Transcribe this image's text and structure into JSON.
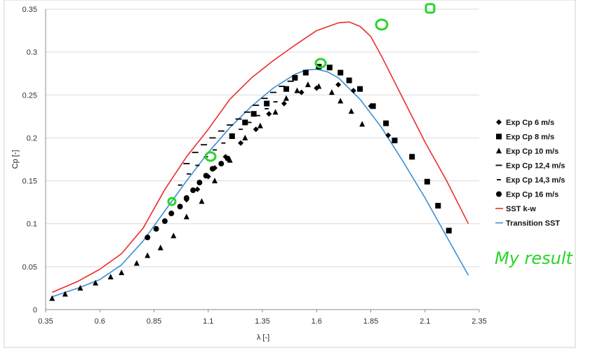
{
  "chart_data": {
    "type": "scatter",
    "xlabel": "λ [-]",
    "ylabel": "Cp [-]",
    "xlim": [
      0.35,
      2.35
    ],
    "ylim": [
      0,
      0.35
    ],
    "xticks": [
      "0.35",
      "0.6",
      "0.85",
      "1.1",
      "1.35",
      "1.6",
      "1.85",
      "2.1",
      "2.35"
    ],
    "yticks": [
      "0",
      "0.05",
      "0.1",
      "0.15",
      "0.2",
      "0.25",
      "0.3",
      "0.35"
    ],
    "grid": "horizontal",
    "legend_position": "right",
    "series": [
      {
        "name": "Exp Cp 6 m/s",
        "marker": "diamond",
        "color": "#000000",
        "x": [
          1.0,
          1.05,
          1.1,
          1.13,
          1.18,
          1.25,
          1.32,
          1.38,
          1.45,
          1.53,
          1.6,
          1.7,
          1.77,
          1.85,
          1.93
        ],
        "y": [
          0.128,
          0.14,
          0.155,
          0.165,
          0.178,
          0.194,
          0.21,
          0.228,
          0.24,
          0.253,
          0.258,
          0.262,
          0.255,
          0.237,
          0.203
        ]
      },
      {
        "name": "Exp Cp 8 m/s",
        "marker": "square",
        "color": "#000000",
        "x": [
          1.21,
          1.27,
          1.31,
          1.37,
          1.46,
          1.5,
          1.55,
          1.61,
          1.66,
          1.71,
          1.75,
          1.8,
          1.86,
          1.92,
          1.96,
          2.04,
          2.11,
          2.16,
          2.21
        ],
        "y": [
          0.202,
          0.218,
          0.228,
          0.24,
          0.257,
          0.27,
          0.276,
          0.283,
          0.282,
          0.276,
          0.267,
          0.257,
          0.237,
          0.217,
          0.197,
          0.178,
          0.149,
          0.121,
          0.092
        ]
      },
      {
        "name": "Exp Cp 10 m/s",
        "marker": "triangle",
        "color": "#000000",
        "x": [
          0.38,
          0.44,
          0.51,
          0.58,
          0.65,
          0.7,
          0.77,
          0.82,
          0.88,
          0.94,
          1.0,
          1.07,
          1.13,
          1.2,
          1.27,
          1.34,
          1.41,
          1.46,
          1.51,
          1.56,
          1.61,
          1.67,
          1.71,
          1.76,
          1.81
        ],
        "y": [
          0.013,
          0.018,
          0.025,
          0.031,
          0.038,
          0.043,
          0.054,
          0.063,
          0.072,
          0.086,
          0.108,
          0.126,
          0.15,
          0.174,
          0.2,
          0.214,
          0.23,
          0.246,
          0.255,
          0.262,
          0.26,
          0.253,
          0.243,
          0.231,
          0.216
        ]
      },
      {
        "name": "Exp Cp 12,4 m/s",
        "marker": "dash",
        "color": "#000000",
        "x": [
          1.0,
          1.04,
          1.08,
          1.12,
          1.16,
          1.2,
          1.24,
          1.28,
          1.32,
          1.36,
          1.4,
          1.44,
          1.48
        ],
        "y": [
          0.17,
          0.183,
          0.192,
          0.2,
          0.208,
          0.215,
          0.222,
          0.23,
          0.238,
          0.246,
          0.253,
          0.26,
          0.266
        ]
      },
      {
        "name": "Exp Cp 14,3 m/s",
        "marker": "short-dash",
        "color": "#000000",
        "x": [
          0.97,
          1.01,
          1.05,
          1.09,
          1.13,
          1.17,
          1.21,
          1.25,
          1.29,
          1.33,
          1.37,
          1.41
        ],
        "y": [
          0.145,
          0.158,
          0.168,
          0.178,
          0.186,
          0.194,
          0.202,
          0.21,
          0.218,
          0.226,
          0.234,
          0.242
        ]
      },
      {
        "name": "Exp Cp 16 m/s",
        "marker": "circle",
        "color": "#000000",
        "x": [
          0.82,
          0.86,
          0.9,
          0.93,
          0.97,
          1.0,
          1.03,
          1.06,
          1.09,
          1.12,
          1.16,
          1.19
        ],
        "y": [
          0.084,
          0.094,
          0.103,
          0.112,
          0.12,
          0.13,
          0.139,
          0.148,
          0.156,
          0.164,
          0.17,
          0.176
        ]
      },
      {
        "name": "SST k-w",
        "marker": "line",
        "color": "#ee2c2c",
        "x": [
          0.38,
          0.5,
          0.6,
          0.7,
          0.8,
          0.9,
          1.0,
          1.1,
          1.2,
          1.3,
          1.4,
          1.5,
          1.6,
          1.7,
          1.75,
          1.8,
          1.85,
          1.9,
          2.0,
          2.1,
          2.2,
          2.3
        ],
        "y": [
          0.02,
          0.033,
          0.047,
          0.065,
          0.095,
          0.14,
          0.178,
          0.21,
          0.245,
          0.27,
          0.29,
          0.308,
          0.325,
          0.334,
          0.335,
          0.33,
          0.318,
          0.295,
          0.245,
          0.195,
          0.15,
          0.1
        ]
      },
      {
        "name": "Transition SST",
        "marker": "line",
        "color": "#3b8fd4",
        "x": [
          0.38,
          0.5,
          0.6,
          0.7,
          0.8,
          0.9,
          1.0,
          1.1,
          1.2,
          1.3,
          1.4,
          1.5,
          1.55,
          1.6,
          1.65,
          1.7,
          1.8,
          1.9,
          2.0,
          2.1,
          2.2,
          2.3
        ],
        "y": [
          0.015,
          0.025,
          0.035,
          0.052,
          0.08,
          0.115,
          0.15,
          0.183,
          0.212,
          0.237,
          0.258,
          0.274,
          0.279,
          0.28,
          0.277,
          0.27,
          0.245,
          0.212,
          0.172,
          0.13,
          0.085,
          0.04
        ]
      }
    ],
    "annotations": [
      {
        "text": "My result",
        "color": "#2bd42b"
      }
    ]
  },
  "colors": {
    "highlight": "#2bd42b",
    "grid": "#d9d9d9",
    "axis": "#8c8c8c"
  }
}
